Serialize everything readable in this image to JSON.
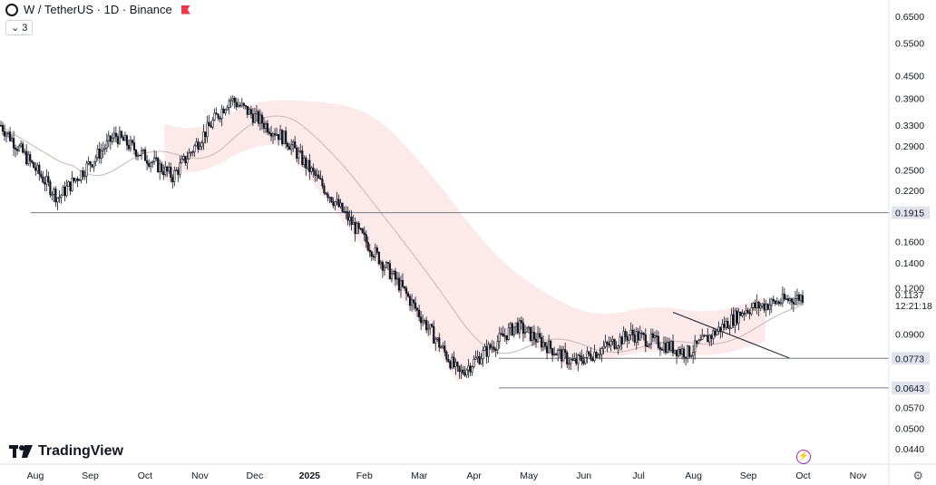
{
  "header": {
    "title": "W / TetherUS · 1D · Binance",
    "indicator_badge": "3"
  },
  "branding": {
    "logo_text": "TradingView"
  },
  "colors": {
    "up": "#131722",
    "down": "#131722",
    "band": "#fbe3e3",
    "ma": "#c9b4b4",
    "line": "#787b86",
    "accent": "#9c27b0"
  },
  "chart_data": {
    "type": "candlestick",
    "title": "W / TetherUS · 1D · Binance",
    "y_scale": "log",
    "ylim": [
      0.04,
      0.72
    ],
    "y_ticks": [
      "0.6500",
      "0.5500",
      "0.4500",
      "0.3900",
      "0.3300",
      "0.2900",
      "0.2500",
      "0.2200",
      "0.1600",
      "0.1400",
      "0.1200",
      "0.0900",
      "0.0570",
      "0.0500",
      "0.0440"
    ],
    "x_ticks": [
      "Aug",
      "Sep",
      "Oct",
      "Nov",
      "Dec",
      "2025",
      "Feb",
      "Mar",
      "Apr",
      "May",
      "Jun",
      "Jul",
      "Aug",
      "Sep",
      "Oct",
      "Nov"
    ],
    "price_labels": [
      {
        "label": "0.1915",
        "value": 0.1915,
        "type": "horizontal_line"
      },
      {
        "label": "0.0773",
        "value": 0.0773,
        "type": "horizontal_line"
      },
      {
        "label": "0.0643",
        "value": 0.0643,
        "type": "horizontal_line"
      }
    ],
    "last_price": {
      "value": "0.1137",
      "countdown": "12:21:18"
    },
    "series_close": [
      {
        "month": "Aug",
        "close": 0.33
      },
      {
        "month": "Sep",
        "close": 0.21
      },
      {
        "month": "Oct",
        "close": 0.31
      },
      {
        "month": "Nov",
        "close": 0.24
      },
      {
        "month": "Dec",
        "close": 0.39
      },
      {
        "month": "2025",
        "close": 0.3
      },
      {
        "month": "Feb",
        "close": 0.19
      },
      {
        "month": "Mar",
        "close": 0.12
      },
      {
        "month": "Apr",
        "close": 0.07
      },
      {
        "month": "May",
        "close": 0.095
      },
      {
        "month": "Jun",
        "close": 0.075
      },
      {
        "month": "Jul",
        "close": 0.09
      },
      {
        "month": "Aug",
        "close": 0.08
      },
      {
        "month": "Sep",
        "close": 0.105
      },
      {
        "month": "Oct",
        "close": 0.1137
      }
    ]
  }
}
